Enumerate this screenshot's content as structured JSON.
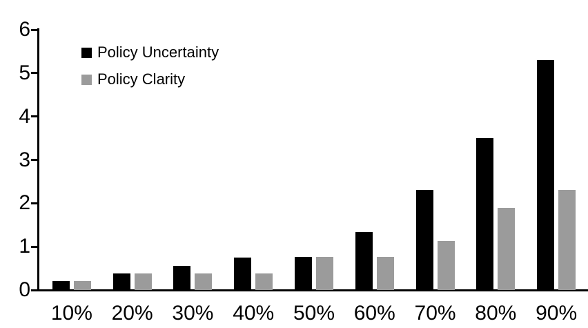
{
  "chart_data": {
    "type": "bar",
    "title": "",
    "xlabel": "",
    "ylabel": "",
    "categories": [
      "10%",
      "20%",
      "30%",
      "40%",
      "50%",
      "60%",
      "70%",
      "80%",
      "90%"
    ],
    "series": [
      {
        "name": "Policy Uncertainty",
        "color": "#000000",
        "values": [
          0.2,
          0.38,
          0.55,
          0.75,
          0.77,
          1.33,
          2.3,
          3.5,
          5.3
        ]
      },
      {
        "name": "Policy Clarity",
        "color": "#9b9b9b",
        "values": [
          0.2,
          0.38,
          0.38,
          0.38,
          0.77,
          0.77,
          1.13,
          1.9,
          2.3
        ]
      }
    ],
    "ylim": [
      0,
      6
    ],
    "yticks": [
      0,
      1,
      2,
      3,
      4,
      5,
      6
    ],
    "grid": false,
    "legend_position": "top-left-inside",
    "background_color": "#ffffff",
    "axis_color": "#000000"
  }
}
